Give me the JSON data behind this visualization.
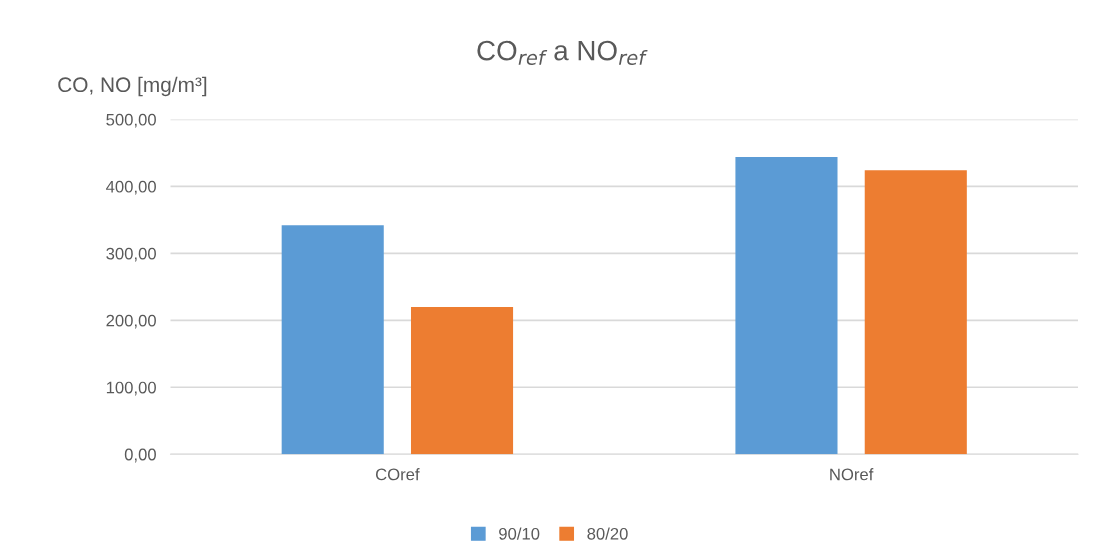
{
  "chart_data": {
    "type": "bar",
    "title": "CO$_{ref}$ a NO$_{ref}$",
    "ylabel": "CO, NO [mg/m³]",
    "categories": [
      "COref",
      "NOref"
    ],
    "series": [
      {
        "name": "90/10",
        "color": "#5b9bd5",
        "values": [
          342,
          444
        ]
      },
      {
        "name": "80/20",
        "color": "#ed7d31",
        "values": [
          220,
          424
        ]
      }
    ],
    "ylim": [
      0,
      500
    ],
    "yticks": [
      {
        "value": 0,
        "label": "0,00"
      },
      {
        "value": 100,
        "label": "100,00"
      },
      {
        "value": 200,
        "label": "200,00"
      },
      {
        "value": 300,
        "label": "300,00"
      },
      {
        "value": 400,
        "label": "400,00"
      },
      {
        "value": 500,
        "label": "500,00"
      }
    ],
    "grid": "y",
    "legend": "bottom"
  }
}
